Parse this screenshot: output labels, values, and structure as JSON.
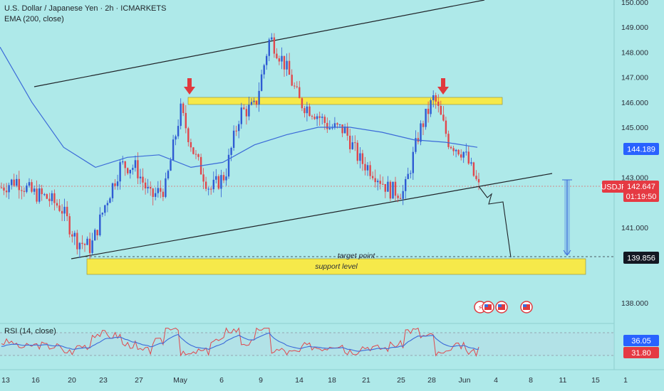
{
  "header": {
    "title": "U.S. Dollar / Japanese Yen · 2h · ICMARKETS",
    "indicator": "EMA (200, close)"
  },
  "rsi_label": "RSI (14, close)",
  "colors": {
    "background": "#aee9e9",
    "ema": "#3b6ad8",
    "up_candle": "#2e5bd3",
    "down_candle": "#e0474c",
    "zone": "#f6e94a",
    "arrow": "#e0393e",
    "price_tag": "#e53a43",
    "ema_tag": "#2962ff"
  },
  "annotations": {
    "target_point": "target point",
    "support_level": "support level"
  },
  "price_tags": {
    "symbol": "USDJPY",
    "last_price": "142.647",
    "countdown": "01:19:50",
    "ema_value": "144.189",
    "target_value": "139.856"
  },
  "rsi_tags": {
    "rsi_ma": "36.05",
    "rsi_value": "31.80"
  },
  "chart_data": {
    "type": "candlestick",
    "title": "U.S. Dollar / Japanese Yen · 2h · ICMARKETS",
    "y_axis_ticks": [
      "150.000",
      "149.000",
      "148.000",
      "147.000",
      "146.000",
      "145.000",
      "143.000",
      "141.000",
      "138.000"
    ],
    "x_axis_ticks": [
      "13",
      "16",
      "20",
      "23",
      "27",
      "May",
      "6",
      "9",
      "14",
      "18",
      "21",
      "25",
      "28",
      "Jun",
      "4",
      "8",
      "11",
      "15",
      "1"
    ],
    "ylim": [
      137.4,
      150.0
    ],
    "approx_close_path": [
      142.6,
      142.9,
      142.4,
      142.2,
      141.8,
      140.5,
      140.2,
      142.0,
      143.5,
      143.4,
      142.2,
      142.6,
      145.7,
      143.8,
      142.5,
      143.1,
      145.6,
      145.8,
      148.6,
      147.5,
      146.0,
      145.6,
      145.0,
      144.9,
      143.7,
      143.2,
      142.5,
      142.4,
      144.8,
      146.2,
      144.4,
      144.0,
      142.6
    ],
    "ema_200_path": [
      148.2,
      146.0,
      144.2,
      143.4,
      143.8,
      143.9,
      143.4,
      143.6,
      144.3,
      144.7,
      145.0,
      145.0,
      144.8,
      144.5,
      144.4,
      144.2
    ],
    "resistance_zone": [
      146.0,
      146.2
    ],
    "support_zone": [
      139.2,
      139.8
    ],
    "target_level": 139.856,
    "last_price": 142.647,
    "ema_value": 144.189,
    "rsi_ylim": [
      20,
      80
    ],
    "rsi_levels": [
      30,
      70
    ]
  }
}
